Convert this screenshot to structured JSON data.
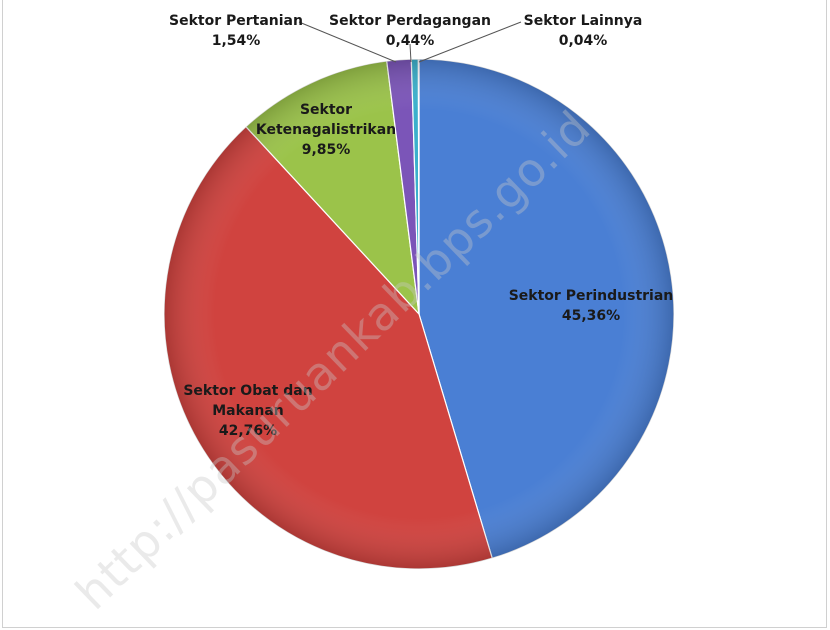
{
  "chart_data": {
    "type": "pie",
    "title": "",
    "series": [
      {
        "name": "Sektor Perindustrian",
        "label_lines": [
          "Sektor Perindustrian"
        ],
        "value": 45.36,
        "value_label": "45,36%",
        "color": "#4a7fd4"
      },
      {
        "name": "Sektor Obat dan Makanan",
        "label_lines": [
          "Sektor Obat dan",
          "Makanan"
        ],
        "value": 42.76,
        "value_label": "42,76%",
        "color": "#d0433f"
      },
      {
        "name": "Sektor Ketenagalistrikan",
        "label_lines": [
          "Sektor",
          "Ketenagalistrikan"
        ],
        "value": 9.85,
        "value_label": "9,85%",
        "color": "#9bc34a"
      },
      {
        "name": "Sektor Pertanian",
        "label_lines": [
          "Sektor Pertanian"
        ],
        "value": 1.54,
        "value_label": "1,54%",
        "color": "#7b55b8"
      },
      {
        "name": "Sektor Perdagangan",
        "label_lines": [
          "Sektor Perdagangan"
        ],
        "value": 0.44,
        "value_label": "0,44%",
        "color": "#3bb0cc"
      },
      {
        "name": "Sektor Lainnya",
        "label_lines": [
          "Sektor Lainnya"
        ],
        "value": 0.04,
        "value_label": "0,04%",
        "color": "#f0923a"
      }
    ],
    "legend": "none"
  },
  "watermark": "http://pasuruankab.bps.go.id"
}
